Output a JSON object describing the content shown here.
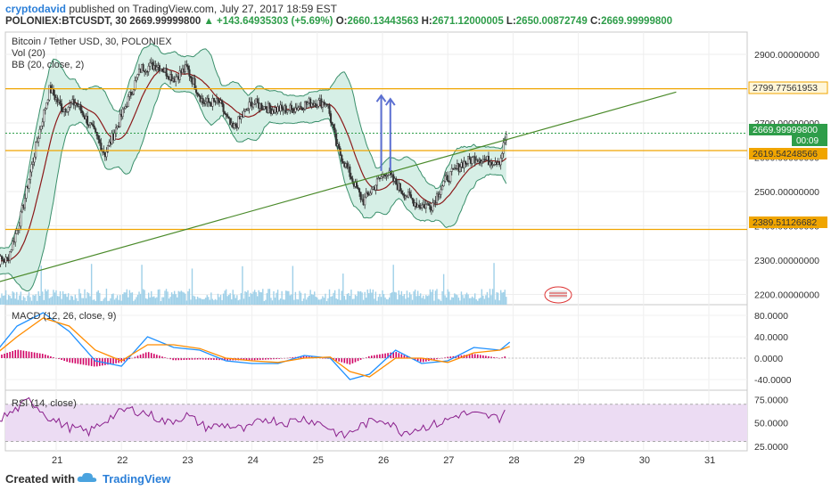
{
  "header": {
    "author": "cryptodavid",
    "published_text": "published on TradingView.com, July 27, 2017 18:59 EST",
    "symbol_line": "POLONIEX:BTCUSDT, 30  2669.99999800",
    "change_text": "▲ +143.64935303 (+5.69%)",
    "open_label": "O:",
    "open_value": "2660.13443563",
    "high_label": "H:",
    "high_value": "2671.12000005",
    "low_label": "L:",
    "low_value": "2650.00872749",
    "close_label": "C:",
    "close_value": "2669.99999800"
  },
  "legend": {
    "title": "Bitcoin / Tether USD, 30, POLONIEX",
    "vol": "Vol (20)",
    "bb": "BB (20, close, 2)",
    "macd": "MACD (12, 26, close, 9)",
    "rsi": "RSI (14, close)"
  },
  "price_labels": {
    "last_price": "2669.99999800",
    "countdown": "00:09",
    "level_top": "2799.77561953",
    "level_mid": "2619.54248566",
    "level_low": "2389.51126682"
  },
  "footer": {
    "created_with": "Created with",
    "brand": "TradingView"
  },
  "colors": {
    "up": "#2e9d49",
    "candle": "#333333",
    "bb_fill": "#d6efe6",
    "bb_line": "#3a8f6b",
    "ma": "#8b1a1a",
    "level": "#f0a500",
    "trend": "#4a8a2a",
    "arrow": "#5b6fd1",
    "volume": "#9fd0e8",
    "macd": "#1e90ff",
    "signal": "#ff8c00",
    "hist": "#d10064",
    "rsi": "#8a1f8c",
    "rsi_band": "#ecdcf3"
  },
  "chart_data": [
    {
      "type": "candlestick",
      "name": "Bitcoin / Tether USD, 30, POLONIEX",
      "x_ticks": [
        "21",
        "22",
        "23",
        "24",
        "25",
        "26",
        "27",
        "28",
        "29",
        "30",
        "31"
      ],
      "y_ticks": [
        "2900.00000000",
        "2800.00000000",
        "2700.00000000",
        "2600.00000000",
        "2500.00000000",
        "2400.00000000",
        "2300.00000000",
        "2200.00000000"
      ],
      "ylim": [
        2170,
        2965
      ],
      "close_series": [
        {
          "x": 20.25,
          "y": 2300
        },
        {
          "x": 20.45,
          "y": 2420
        },
        {
          "x": 20.7,
          "y": 2640
        },
        {
          "x": 20.9,
          "y": 2800
        },
        {
          "x": 21.1,
          "y": 2740
        },
        {
          "x": 21.3,
          "y": 2760
        },
        {
          "x": 21.5,
          "y": 2700
        },
        {
          "x": 21.75,
          "y": 2610
        },
        {
          "x": 22.0,
          "y": 2720
        },
        {
          "x": 22.3,
          "y": 2860
        },
        {
          "x": 22.55,
          "y": 2870
        },
        {
          "x": 22.8,
          "y": 2830
        },
        {
          "x": 23.0,
          "y": 2860
        },
        {
          "x": 23.25,
          "y": 2760
        },
        {
          "x": 23.5,
          "y": 2760
        },
        {
          "x": 23.7,
          "y": 2680
        },
        {
          "x": 24.0,
          "y": 2760
        },
        {
          "x": 24.3,
          "y": 2740
        },
        {
          "x": 24.6,
          "y": 2740
        },
        {
          "x": 24.9,
          "y": 2760
        },
        {
          "x": 25.15,
          "y": 2760
        },
        {
          "x": 25.3,
          "y": 2630
        },
        {
          "x": 25.5,
          "y": 2550
        },
        {
          "x": 25.7,
          "y": 2470
        },
        {
          "x": 25.85,
          "y": 2510
        },
        {
          "x": 26.05,
          "y": 2560
        },
        {
          "x": 26.3,
          "y": 2500
        },
        {
          "x": 26.55,
          "y": 2460
        },
        {
          "x": 26.75,
          "y": 2460
        },
        {
          "x": 26.95,
          "y": 2530
        },
        {
          "x": 27.2,
          "y": 2580
        },
        {
          "x": 27.45,
          "y": 2600
        },
        {
          "x": 27.6,
          "y": 2590
        },
        {
          "x": 27.8,
          "y": 2590
        },
        {
          "x": 27.9,
          "y": 2670
        }
      ],
      "horizontal_levels": [
        2799.77561953,
        2619.54248566,
        2389.51126682
      ],
      "trendline": [
        {
          "x": 20.0,
          "y": 2230
        },
        {
          "x": 30.5,
          "y": 2790
        }
      ],
      "arrows_up": [
        {
          "x": 25.98,
          "y_from": 2560,
          "y_to": 2780
        },
        {
          "x": 26.12,
          "y_from": 2560,
          "y_to": 2770
        }
      ]
    },
    {
      "type": "line",
      "name": "MACD (12, 26, close, 9)",
      "y_ticks": [
        "80.0000",
        "40.0000",
        "0.0000",
        "-40.0000"
      ],
      "ylim": [
        -60,
        100
      ],
      "series": [
        {
          "values_x": [
            20.0,
            20.4,
            20.8,
            21.2,
            21.6,
            22.0,
            22.4,
            22.8,
            23.2,
            23.6,
            24.0,
            24.4,
            24.8,
            25.2,
            25.5,
            25.8,
            26.2,
            26.6,
            27.0,
            27.4,
            27.8,
            27.95
          ],
          "values_y": [
            0,
            60,
            85,
            50,
            -5,
            -15,
            40,
            20,
            15,
            -5,
            -10,
            -10,
            5,
            0,
            -40,
            -30,
            15,
            -10,
            -5,
            20,
            15,
            30
          ]
        },
        {
          "values_x": [
            20.0,
            20.4,
            20.8,
            21.2,
            21.6,
            22.0,
            22.4,
            22.8,
            23.2,
            23.6,
            24.0,
            24.4,
            24.8,
            25.2,
            25.5,
            25.8,
            26.2,
            26.6,
            27.0,
            27.4,
            27.8,
            27.95
          ],
          "values_y": [
            0,
            40,
            75,
            60,
            15,
            -5,
            25,
            25,
            18,
            0,
            -5,
            -8,
            0,
            2,
            -25,
            -35,
            0,
            0,
            -8,
            10,
            15,
            22
          ]
        }
      ]
    },
    {
      "type": "line",
      "name": "RSI (14, close)",
      "y_ticks": [
        "75.0000",
        "50.0000",
        "25.0000"
      ],
      "ylim": [
        20,
        85
      ],
      "band": [
        30,
        70
      ],
      "series": [
        {
          "values_x": [
            20.0,
            20.3,
            20.6,
            20.9,
            21.2,
            21.5,
            21.8,
            22.1,
            22.4,
            22.7,
            23.0,
            23.3,
            23.6,
            23.9,
            24.2,
            24.5,
            24.8,
            25.1,
            25.4,
            25.7,
            26.0,
            26.3,
            26.6,
            26.9,
            27.2,
            27.5,
            27.8,
            27.95
          ],
          "values_y": [
            50,
            60,
            75,
            55,
            45,
            40,
            55,
            65,
            60,
            50,
            58,
            45,
            48,
            42,
            55,
            50,
            55,
            48,
            35,
            48,
            55,
            40,
            45,
            50,
            60,
            58,
            55,
            72
          ]
        }
      ]
    }
  ]
}
